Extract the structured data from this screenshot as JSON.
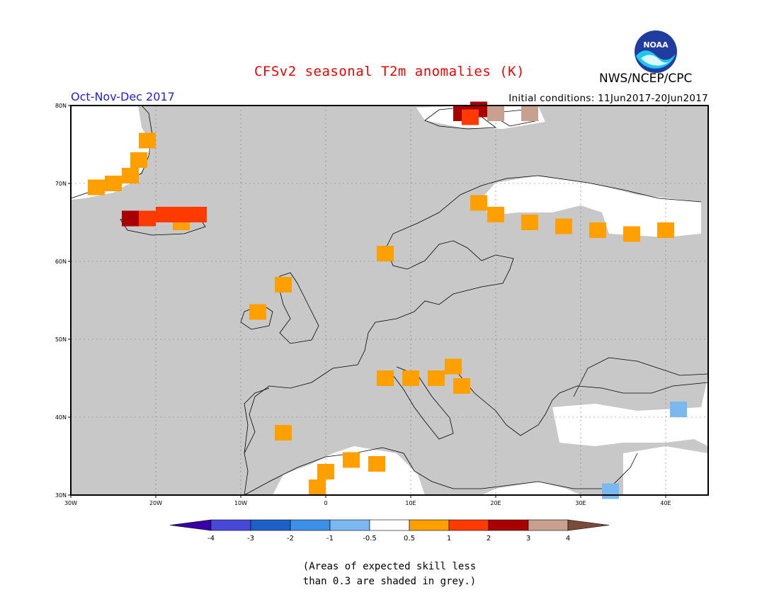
{
  "header": {
    "title": "CFSv2 seasonal T2m anomalies (K)",
    "organization": "NWS/NCEP/CPC",
    "logo_text": "NOAA",
    "period": "Oct-Nov-Dec 2017",
    "initial_conditions": "Initial conditions: 11Jun2017-20Jun2017"
  },
  "map": {
    "lon_range": [
      -30,
      45
    ],
    "lat_range": [
      30,
      80
    ],
    "lon_tick_labels": [
      "30W",
      "20W",
      "10W",
      "0",
      "10E",
      "20E",
      "30E",
      "40E"
    ],
    "lat_tick_labels": [
      "30N",
      "40N",
      "50N",
      "60N",
      "70N",
      "80N"
    ],
    "ocean_color": "#c8c8c8",
    "grid": true,
    "anomaly_cells": [
      {
        "lon": -17,
        "lat": 65,
        "class": "0.5 to 1"
      },
      {
        "lon": -21,
        "lat": 65.5,
        "class": "1 to 2"
      },
      {
        "lon": -19,
        "lat": 66,
        "class": "1 to 2"
      },
      {
        "lon": -17,
        "lat": 66,
        "class": "1 to 2"
      },
      {
        "lon": -15,
        "lat": 66,
        "class": "1 to 2"
      },
      {
        "lon": -23,
        "lat": 65.5,
        "class": "2 to 3"
      },
      {
        "lon": -23,
        "lat": 71,
        "class": "0.5 to 1"
      },
      {
        "lon": -25,
        "lat": 70,
        "class": "0.5 to 1"
      },
      {
        "lon": -27,
        "lat": 69.5,
        "class": "0.5 to 1"
      },
      {
        "lon": -22,
        "lat": 73,
        "class": "0.5 to 1"
      },
      {
        "lon": -21,
        "lat": 75.5,
        "class": "0.5 to 1"
      },
      {
        "lon": 16,
        "lat": 79,
        "class": "2 to 3"
      },
      {
        "lon": 18,
        "lat": 79.5,
        "class": "2 to 3"
      },
      {
        "lon": 20,
        "lat": 79,
        "class": "3 to 4"
      },
      {
        "lon": 24,
        "lat": 79,
        "class": "3 to 4"
      },
      {
        "lon": 17,
        "lat": 78.5,
        "class": "1 to 2"
      },
      {
        "lon": 18,
        "lat": 67.5,
        "class": "0.5 to 1"
      },
      {
        "lon": 20,
        "lat": 66,
        "class": "0.5 to 1"
      },
      {
        "lon": 24,
        "lat": 65,
        "class": "0.5 to 1"
      },
      {
        "lon": 28,
        "lat": 64.5,
        "class": "0.5 to 1"
      },
      {
        "lon": 32,
        "lat": 64,
        "class": "0.5 to 1"
      },
      {
        "lon": 36,
        "lat": 63.5,
        "class": "0.5 to 1"
      },
      {
        "lon": 40,
        "lat": 64,
        "class": "0.5 to 1"
      },
      {
        "lon": 7,
        "lat": 61,
        "class": "0.5 to 1"
      },
      {
        "lon": -5,
        "lat": 57,
        "class": "0.5 to 1"
      },
      {
        "lon": -8,
        "lat": 53.5,
        "class": "0.5 to 1"
      },
      {
        "lon": 7,
        "lat": 45,
        "class": "0.5 to 1"
      },
      {
        "lon": 10,
        "lat": 45,
        "class": "0.5 to 1"
      },
      {
        "lon": 13,
        "lat": 45,
        "class": "0.5 to 1"
      },
      {
        "lon": 15,
        "lat": 46.5,
        "class": "0.5 to 1"
      },
      {
        "lon": 16,
        "lat": 44,
        "class": "0.5 to 1"
      },
      {
        "lon": -5,
        "lat": 38,
        "class": "0.5 to 1"
      },
      {
        "lon": 0,
        "lat": 33,
        "class": "0.5 to 1"
      },
      {
        "lon": 3,
        "lat": 34.5,
        "class": "0.5 to 1"
      },
      {
        "lon": 6,
        "lat": 34,
        "class": "0.5 to 1"
      },
      {
        "lon": -1,
        "lat": 31,
        "class": "0.5 to 1"
      },
      {
        "lon": 41.5,
        "lat": 41,
        "class": "-1 to -0.5"
      },
      {
        "lon": 33.5,
        "lat": 30.5,
        "class": "-1 to -0.5"
      }
    ]
  },
  "colorbar": {
    "labels": [
      "-4",
      "-3",
      "-2",
      "-1",
      "-0.5",
      "0.5",
      "1",
      "2",
      "3",
      "4"
    ],
    "colors": [
      "#3a00a8",
      "#4848d8",
      "#1d60c8",
      "#3c90e8",
      "#7cb8f0",
      "#ffffff",
      "#ff9f00",
      "#ff3a00",
      "#a80000",
      "#c8a090",
      "#7a4a3a"
    ],
    "color_map": {
      "0.5 to 1": "#ff9f00",
      "1 to 2": "#ff3a00",
      "2 to 3": "#a80000",
      "3 to 4": "#c8a090",
      "-1 to -0.5": "#7cb8f0"
    }
  },
  "footnote": "(Areas of expected skill less\nthan 0.3 are shaded in grey.)"
}
